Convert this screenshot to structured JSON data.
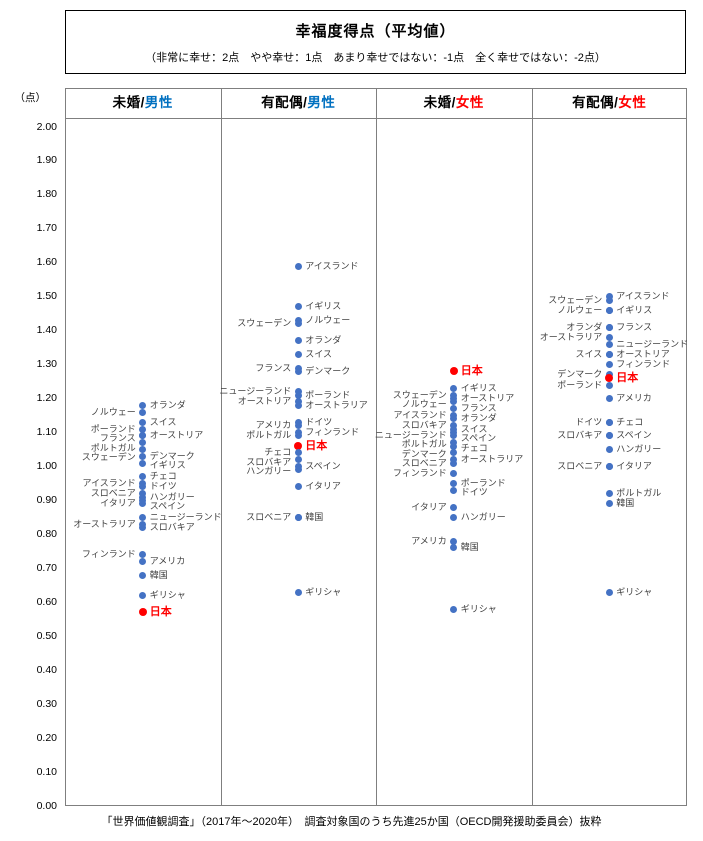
{
  "footer": "「世界価値観調査」（2017年～2020年）　調査対象国のうち先進25か国（OECD開発援助委員会）抜粋",
  "colors": {
    "dot_blue": "#4472C4",
    "japan_red": "#FF0000",
    "male_blue": "#0070C0",
    "female_red": "#FF0000",
    "line_gray": "#7F7F7F"
  },
  "chart_data": {
    "type": "scatter",
    "title": "幸福度得点（平均値）",
    "subtitle": "（非常に幸せ：2点　やや幸せ：1点　あまり幸せではない：-1点　全く幸せではない：-2点）",
    "grid": false,
    "legend": "none",
    "y_axis": {
      "unit": "（点）",
      "min": 0.0,
      "max": 2.0,
      "step": 0.1,
      "ticks": [
        "2.00",
        "1.90",
        "1.80",
        "1.70",
        "1.60",
        "1.50",
        "1.40",
        "1.30",
        "1.20",
        "1.10",
        "1.00",
        "0.90",
        "0.80",
        "0.70",
        "0.60",
        "0.50",
        "0.40",
        "0.30",
        "0.20",
        "0.10",
        "0.00"
      ]
    },
    "panels": [
      {
        "header": {
          "prefix": "未婚/",
          "group": "男性",
          "group_color": "#0070C0"
        },
        "points": [
          {
            "country": "オランダ",
            "value": 1.18,
            "label_side": "right",
            "highlight": false
          },
          {
            "country": "ノルウェー",
            "value": 1.16,
            "label_side": "left",
            "highlight": false
          },
          {
            "country": "スイス",
            "value": 1.13,
            "label_side": "right",
            "highlight": false
          },
          {
            "country": "ポーランド",
            "value": 1.11,
            "label_side": "left",
            "highlight": false
          },
          {
            "country": "オーストリア",
            "value": 1.09,
            "label_side": "right",
            "highlight": false
          },
          {
            "country": "フランス",
            "value": 1.09,
            "label_side": "left",
            "highlight": false
          },
          {
            "country": "ポルトガル",
            "value": 1.07,
            "label_side": "left",
            "highlight": false
          },
          {
            "country": "スウェーデン",
            "value": 1.05,
            "label_side": "left",
            "highlight": false
          },
          {
            "country": "デンマーク",
            "value": 1.03,
            "label_side": "right",
            "highlight": false
          },
          {
            "country": "イギリス",
            "value": 1.01,
            "label_side": "right",
            "highlight": false
          },
          {
            "country": "チェコ",
            "value": 0.97,
            "label_side": "right",
            "highlight": false
          },
          {
            "country": "アイスランド",
            "value": 0.95,
            "label_side": "left",
            "highlight": false
          },
          {
            "country": "ドイツ",
            "value": 0.94,
            "label_side": "right",
            "highlight": false
          },
          {
            "country": "スロベニア",
            "value": 0.92,
            "label_side": "left",
            "highlight": false
          },
          {
            "country": "ハンガリー",
            "value": 0.91,
            "label_side": "right",
            "highlight": false
          },
          {
            "country": "イタリア",
            "value": 0.9,
            "label_side": "left",
            "highlight": false
          },
          {
            "country": "スペイン",
            "value": 0.89,
            "label_side": "right",
            "highlight": false
          },
          {
            "country": "ニュージーランド",
            "value": 0.85,
            "label_side": "right",
            "highlight": false
          },
          {
            "country": "オーストラリア",
            "value": 0.83,
            "label_side": "left",
            "highlight": false
          },
          {
            "country": "スロバキア",
            "value": 0.82,
            "label_side": "right",
            "highlight": false
          },
          {
            "country": "フィンランド",
            "value": 0.74,
            "label_side": "left",
            "highlight": false
          },
          {
            "country": "アメリカ",
            "value": 0.72,
            "label_side": "right",
            "highlight": false
          },
          {
            "country": "韓国",
            "value": 0.68,
            "label_side": "right",
            "highlight": false
          },
          {
            "country": "ギリシャ",
            "value": 0.62,
            "label_side": "right",
            "highlight": false
          },
          {
            "country": "日本",
            "value": 0.57,
            "label_side": "right",
            "highlight": true
          }
        ]
      },
      {
        "header": {
          "prefix": "有配偶/",
          "group": "男性",
          "group_color": "#0070C0"
        },
        "points": [
          {
            "country": "アイスランド",
            "value": 1.59,
            "label_side": "right",
            "highlight": false
          },
          {
            "country": "イギリス",
            "value": 1.47,
            "label_side": "right",
            "highlight": false
          },
          {
            "country": "ノルウェー",
            "value": 1.43,
            "label_side": "right",
            "highlight": false
          },
          {
            "country": "スウェーデン",
            "value": 1.42,
            "label_side": "left",
            "highlight": false
          },
          {
            "country": "オランダ",
            "value": 1.37,
            "label_side": "right",
            "highlight": false
          },
          {
            "country": "スイス",
            "value": 1.33,
            "label_side": "right",
            "highlight": false
          },
          {
            "country": "フランス",
            "value": 1.29,
            "label_side": "left",
            "highlight": false
          },
          {
            "country": "デンマーク",
            "value": 1.28,
            "label_side": "right",
            "highlight": false
          },
          {
            "country": "ニュージーランド",
            "value": 1.22,
            "label_side": "left",
            "highlight": false
          },
          {
            "country": "ポーランド",
            "value": 1.21,
            "label_side": "right",
            "highlight": false
          },
          {
            "country": "オーストリア",
            "value": 1.19,
            "label_side": "left",
            "highlight": false
          },
          {
            "country": "オーストラリア",
            "value": 1.18,
            "label_side": "right",
            "highlight": false
          },
          {
            "country": "ドイツ",
            "value": 1.13,
            "label_side": "right",
            "highlight": false
          },
          {
            "country": "アメリカ",
            "value": 1.12,
            "label_side": "left",
            "highlight": false
          },
          {
            "country": "フィンランド",
            "value": 1.1,
            "label_side": "right",
            "highlight": false
          },
          {
            "country": "ポルトガル",
            "value": 1.09,
            "label_side": "left",
            "highlight": false
          },
          {
            "country": "日本",
            "value": 1.06,
            "label_side": "right",
            "highlight": true
          },
          {
            "country": "チェコ",
            "value": 1.04,
            "label_side": "left",
            "highlight": false
          },
          {
            "country": "スロバキア",
            "value": 1.02,
            "label_side": "left",
            "highlight": false
          },
          {
            "country": "スペイン",
            "value": 1.0,
            "label_side": "right",
            "highlight": false
          },
          {
            "country": "ハンガリー",
            "value": 0.99,
            "label_side": "left",
            "highlight": false
          },
          {
            "country": "イタリア",
            "value": 0.94,
            "label_side": "right",
            "highlight": false
          },
          {
            "country": "スロベニア",
            "value": 0.85,
            "label_side": "left",
            "highlight": false
          },
          {
            "country": "韓国",
            "value": 0.85,
            "label_side": "right",
            "highlight": false
          },
          {
            "country": "ギリシャ",
            "value": 0.63,
            "label_side": "right",
            "highlight": false
          }
        ]
      },
      {
        "header": {
          "prefix": "未婚/",
          "group": "女性",
          "group_color": "#FF0000"
        },
        "points": [
          {
            "country": "日本",
            "value": 1.28,
            "label_side": "right",
            "highlight": true
          },
          {
            "country": "イギリス",
            "value": 1.23,
            "label_side": "right",
            "highlight": false
          },
          {
            "country": "スウェーデン",
            "value": 1.21,
            "label_side": "left",
            "highlight": false
          },
          {
            "country": "オーストリア",
            "value": 1.2,
            "label_side": "right",
            "highlight": false
          },
          {
            "country": "ノルウェー",
            "value": 1.19,
            "label_side": "left",
            "highlight": false
          },
          {
            "country": "フランス",
            "value": 1.17,
            "label_side": "right",
            "highlight": false
          },
          {
            "country": "アイスランド",
            "value": 1.15,
            "label_side": "left",
            "highlight": false
          },
          {
            "country": "オランダ",
            "value": 1.14,
            "label_side": "right",
            "highlight": false
          },
          {
            "country": "スロバキア",
            "value": 1.12,
            "label_side": "left",
            "highlight": false
          },
          {
            "country": "スイス",
            "value": 1.11,
            "label_side": "right",
            "highlight": false
          },
          {
            "country": "ニュージーランド",
            "value": 1.1,
            "label_side": "left",
            "highlight": false
          },
          {
            "country": "スペイン",
            "value": 1.09,
            "label_side": "right",
            "highlight": false
          },
          {
            "country": "ポルトガル",
            "value": 1.07,
            "label_side": "left",
            "highlight": false
          },
          {
            "country": "チェコ",
            "value": 1.06,
            "label_side": "right",
            "highlight": false
          },
          {
            "country": "デンマーク",
            "value": 1.04,
            "label_side": "left",
            "highlight": false
          },
          {
            "country": "オーストラリア",
            "value": 1.02,
            "label_side": "right",
            "highlight": false
          },
          {
            "country": "スロベニア",
            "value": 1.01,
            "label_side": "left",
            "highlight": false
          },
          {
            "country": "フィンランド",
            "value": 0.98,
            "label_side": "left",
            "highlight": false
          },
          {
            "country": "ポーランド",
            "value": 0.95,
            "label_side": "right",
            "highlight": false
          },
          {
            "country": "ドイツ",
            "value": 0.93,
            "label_side": "right",
            "highlight": false
          },
          {
            "country": "イタリア",
            "value": 0.88,
            "label_side": "left",
            "highlight": false
          },
          {
            "country": "ハンガリー",
            "value": 0.85,
            "label_side": "right",
            "highlight": false
          },
          {
            "country": "アメリカ",
            "value": 0.78,
            "label_side": "left",
            "highlight": false
          },
          {
            "country": "韓国",
            "value": 0.76,
            "label_side": "right",
            "highlight": false
          },
          {
            "country": "ギリシャ",
            "value": 0.58,
            "label_side": "right",
            "highlight": false
          }
        ]
      },
      {
        "header": {
          "prefix": "有配偶/",
          "group": "女性",
          "group_color": "#FF0000"
        },
        "points": [
          {
            "country": "アイスランド",
            "value": 1.5,
            "label_side": "right",
            "highlight": false
          },
          {
            "country": "スウェーデン",
            "value": 1.49,
            "label_side": "left",
            "highlight": false
          },
          {
            "country": "イギリス",
            "value": 1.46,
            "label_side": "right",
            "highlight": false
          },
          {
            "country": "ノルウェー",
            "value": 1.46,
            "label_side": "left",
            "highlight": false
          },
          {
            "country": "フランス",
            "value": 1.41,
            "label_side": "right",
            "highlight": false
          },
          {
            "country": "オランダ",
            "value": 1.41,
            "label_side": "left",
            "highlight": false
          },
          {
            "country": "オーストラリア",
            "value": 1.38,
            "label_side": "left",
            "highlight": false
          },
          {
            "country": "ニュージーランド",
            "value": 1.36,
            "label_side": "right",
            "highlight": false
          },
          {
            "country": "スイス",
            "value": 1.33,
            "label_side": "left",
            "highlight": false
          },
          {
            "country": "オーストリア",
            "value": 1.33,
            "label_side": "right",
            "highlight": false
          },
          {
            "country": "フィンランド",
            "value": 1.3,
            "label_side": "right",
            "highlight": false
          },
          {
            "country": "デンマーク",
            "value": 1.27,
            "label_side": "left",
            "highlight": false
          },
          {
            "country": "日本",
            "value": 1.26,
            "label_side": "right",
            "highlight": true
          },
          {
            "country": "ポーランド",
            "value": 1.24,
            "label_side": "left",
            "highlight": false
          },
          {
            "country": "アメリカ",
            "value": 1.2,
            "label_side": "right",
            "highlight": false
          },
          {
            "country": "ドイツ",
            "value": 1.13,
            "label_side": "left",
            "highlight": false
          },
          {
            "country": "チェコ",
            "value": 1.13,
            "label_side": "right",
            "highlight": false
          },
          {
            "country": "スロバキア",
            "value": 1.09,
            "label_side": "left",
            "highlight": false
          },
          {
            "country": "スペイン",
            "value": 1.09,
            "label_side": "right",
            "highlight": false
          },
          {
            "country": "ハンガリー",
            "value": 1.05,
            "label_side": "right",
            "highlight": false
          },
          {
            "country": "スロベニア",
            "value": 1.0,
            "label_side": "left",
            "highlight": false
          },
          {
            "country": "イタリア",
            "value": 1.0,
            "label_side": "right",
            "highlight": false
          },
          {
            "country": "ポルトガル",
            "value": 0.92,
            "label_side": "right",
            "highlight": false
          },
          {
            "country": "韓国",
            "value": 0.89,
            "label_side": "right",
            "highlight": false
          },
          {
            "country": "ギリシャ",
            "value": 0.63,
            "label_side": "right",
            "highlight": false
          }
        ]
      }
    ]
  }
}
